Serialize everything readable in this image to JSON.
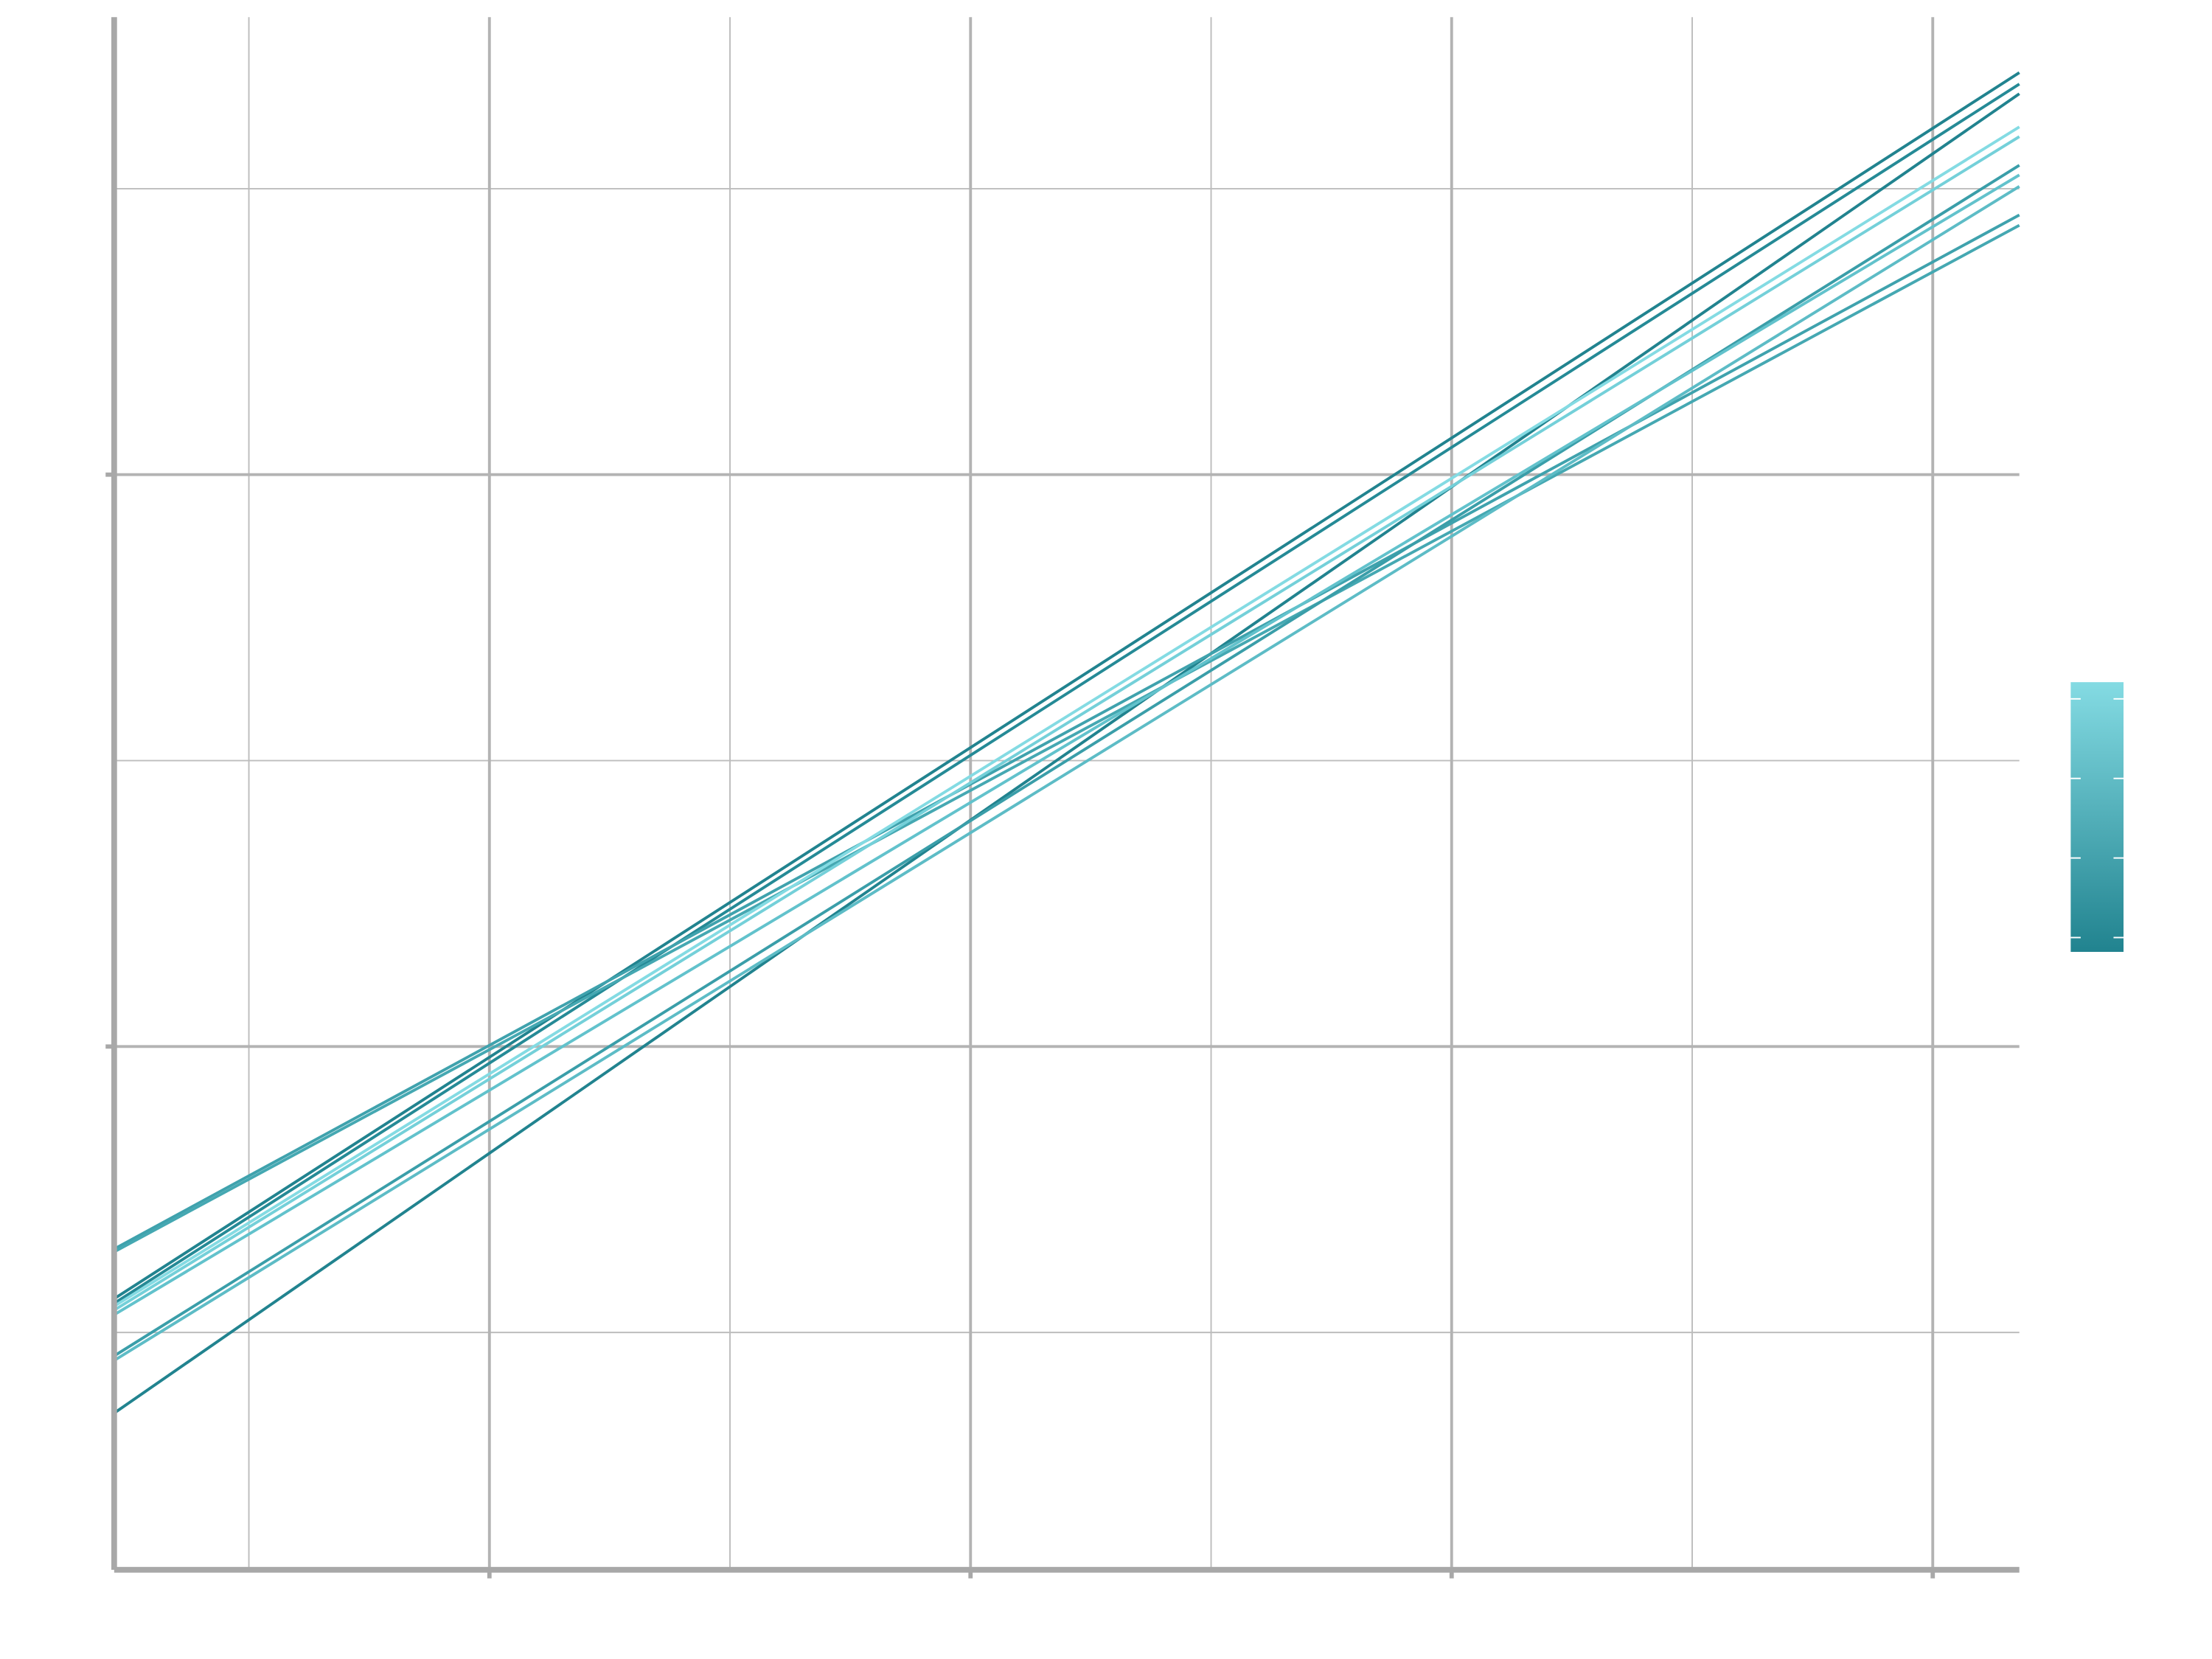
{
  "chart_data": {
    "type": "line",
    "series": [
      {
        "color": "#21838f",
        "x": [
          0.22,
          4.18
        ],
        "values": [
          0.359,
          2.666
        ]
      },
      {
        "color": "#21838f",
        "x": [
          0.22,
          4.18
        ],
        "values": [
          0.559,
          2.703
        ]
      },
      {
        "color": "#258a96",
        "x": [
          0.22,
          4.18
        ],
        "values": [
          0.551,
          2.683
        ]
      },
      {
        "color": "#3fa2ad",
        "x": [
          0.22,
          4.18
        ],
        "values": [
          0.646,
          2.454
        ]
      },
      {
        "color": "#45a8b2",
        "x": [
          0.22,
          4.18
        ],
        "values": [
          0.641,
          2.436
        ]
      },
      {
        "color": "#3a9ea9",
        "x": [
          0.22,
          4.18
        ],
        "values": [
          0.459,
          2.541
        ]
      },
      {
        "color": "#5dbcc6",
        "x": [
          0.22,
          4.18
        ],
        "values": [
          0.451,
          2.504
        ]
      },
      {
        "color": "#84dbe3",
        "x": [
          0.22,
          4.18
        ],
        "values": [
          0.546,
          2.608
        ]
      },
      {
        "color": "#74d0d9",
        "x": [
          0.22,
          4.18
        ],
        "values": [
          0.539,
          2.591
        ]
      },
      {
        "color": "#62c2cc",
        "x": [
          0.22,
          4.18
        ],
        "values": [
          0.531,
          2.524
        ]
      }
    ],
    "xlim": [
      0.22,
      4.18
    ],
    "ylim": [
      0.085,
      2.8
    ],
    "xticks": [
      1,
      2,
      3,
      4
    ],
    "yticks": [
      1,
      2
    ],
    "xminor": [
      0.5,
      1.5,
      2.5,
      3.5
    ],
    "yminor": [
      0.5,
      1.5,
      2.5
    ],
    "grid": true,
    "colorbar": {
      "colors": [
        "#21838f",
        "#84dbe3"
      ],
      "clim": [
        0.82,
        4.21
      ],
      "ticks": [
        1,
        2,
        3,
        4
      ]
    }
  }
}
